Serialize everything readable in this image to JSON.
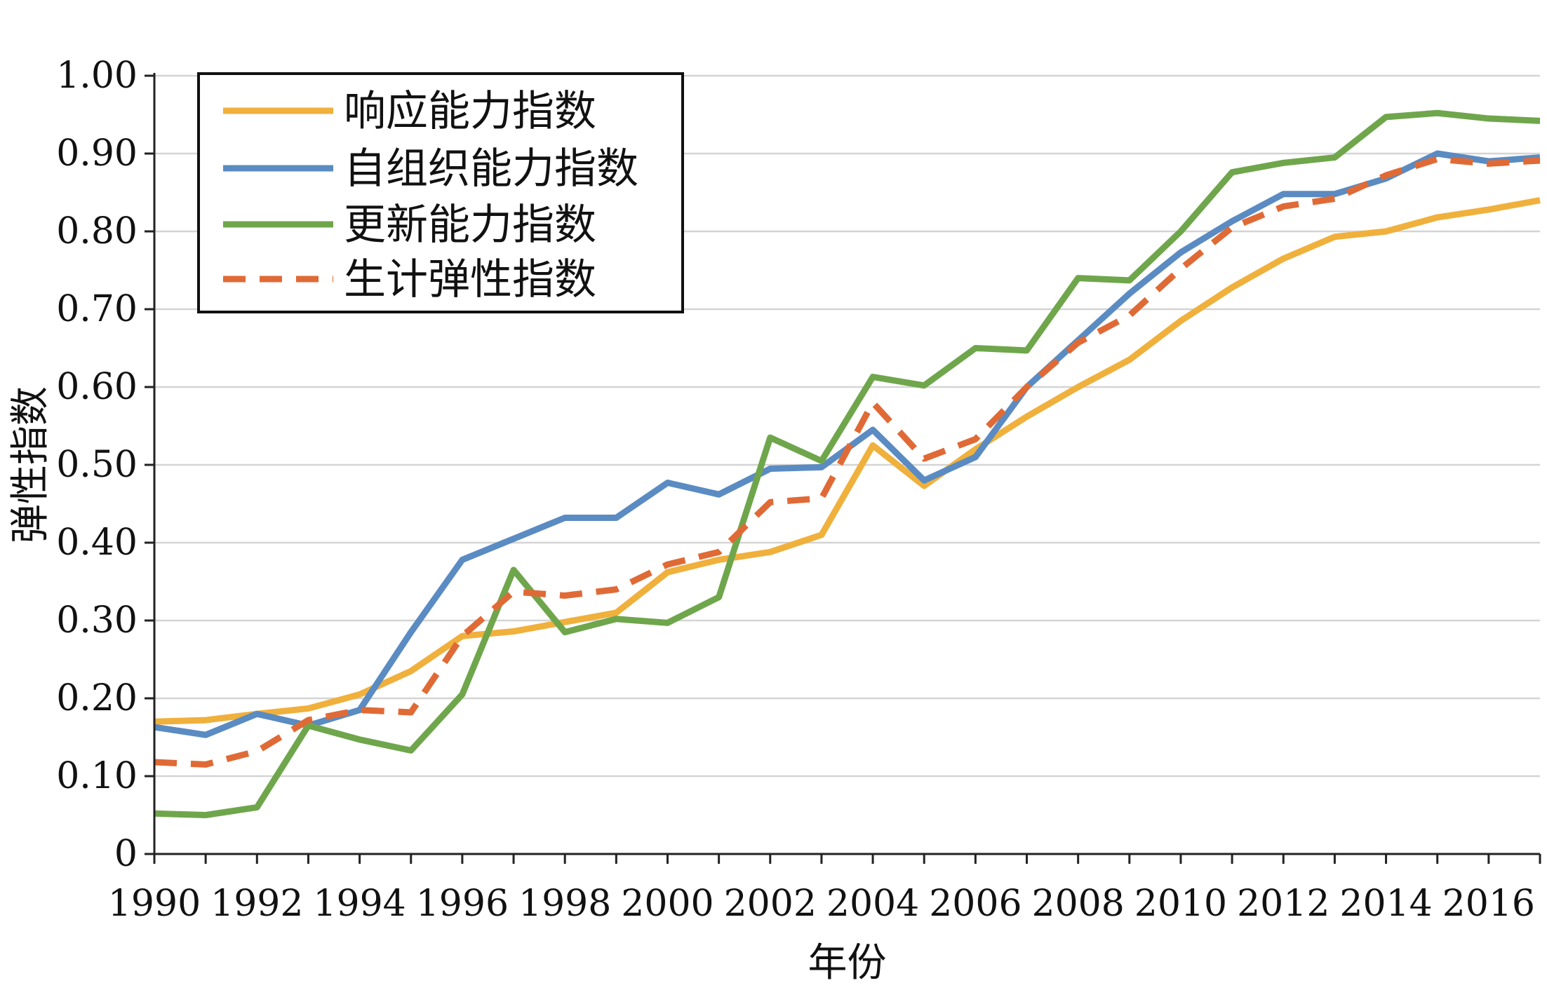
{
  "chart_data": {
    "type": "line",
    "xlabel": "年份",
    "ylabel": "弹性指数",
    "ylim": [
      0,
      1.0
    ],
    "yticks": [
      0,
      0.1,
      0.2,
      0.3,
      0.4,
      0.5,
      0.6,
      0.7,
      0.8,
      0.9,
      1.0
    ],
    "ytick_labels": [
      "0",
      "0.10",
      "0.20",
      "0.30",
      "0.40",
      "0.50",
      "0.60",
      "0.70",
      "0.80",
      "0.90",
      "1.00"
    ],
    "xlim": [
      1990,
      2017
    ],
    "x": [
      1990,
      1991,
      1992,
      1993,
      1994,
      1995,
      1996,
      1997,
      1998,
      1999,
      2000,
      2001,
      2002,
      2003,
      2004,
      2005,
      2006,
      2007,
      2008,
      2009,
      2010,
      2011,
      2012,
      2013,
      2014,
      2015,
      2016,
      2017
    ],
    "xtick_labels": [
      "1990",
      "1992",
      "1994",
      "1996",
      "1998",
      "2000",
      "2002",
      "2004",
      "2006",
      "2008",
      "2010",
      "2012",
      "2014",
      "2016"
    ],
    "xtick_values": [
      1990,
      1992,
      1994,
      1996,
      1998,
      2000,
      2002,
      2004,
      2006,
      2008,
      2010,
      2012,
      2014,
      2016
    ],
    "grid": true,
    "legend_position": "top-left",
    "series": [
      {
        "name": "响应能力指数",
        "color": "#F0B03C",
        "dashed": false,
        "values": [
          0.17,
          0.172,
          0.18,
          0.187,
          0.205,
          0.235,
          0.28,
          0.286,
          0.298,
          0.31,
          0.362,
          0.378,
          0.388,
          0.41,
          0.525,
          0.473,
          0.52,
          0.562,
          0.6,
          0.635,
          0.685,
          0.728,
          0.765,
          0.793,
          0.8,
          0.818,
          0.828,
          0.84
        ]
      },
      {
        "name": "自组织能力指数",
        "color": "#5A8BC2",
        "dashed": false,
        "values": [
          0.163,
          0.153,
          0.18,
          0.165,
          0.185,
          0.285,
          0.378,
          0.405,
          0.432,
          0.432,
          0.477,
          0.462,
          0.495,
          0.497,
          0.545,
          0.48,
          0.51,
          0.6,
          0.66,
          0.72,
          0.773,
          0.813,
          0.848,
          0.848,
          0.868,
          0.9,
          0.89,
          0.895
        ]
      },
      {
        "name": "更新能力指数",
        "color": "#6FA64C",
        "dashed": false,
        "values": [
          0.052,
          0.05,
          0.06,
          0.165,
          0.147,
          0.133,
          0.205,
          0.365,
          0.285,
          0.302,
          0.297,
          0.33,
          0.535,
          0.505,
          0.613,
          0.602,
          0.65,
          0.647,
          0.74,
          0.737,
          0.8,
          0.876,
          0.888,
          0.895,
          0.947,
          0.952,
          0.945,
          0.942
        ]
      },
      {
        "name": "生计弹性指数",
        "color": "#E06A36",
        "dashed": true,
        "values": [
          0.118,
          0.115,
          0.132,
          0.172,
          0.185,
          0.182,
          0.28,
          0.337,
          0.332,
          0.34,
          0.372,
          0.388,
          0.452,
          0.457,
          0.58,
          0.508,
          0.533,
          0.6,
          0.657,
          0.692,
          0.752,
          0.805,
          0.832,
          0.842,
          0.872,
          0.893,
          0.887,
          0.891
        ]
      }
    ]
  }
}
